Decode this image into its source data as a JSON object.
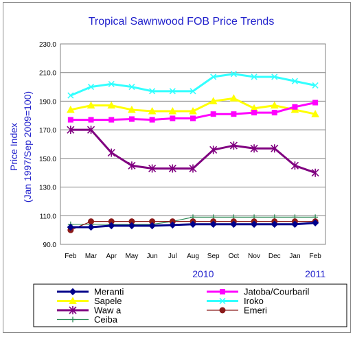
{
  "chart_data": {
    "type": "line",
    "title": "Tropical Sawnwood FOB Price Trends",
    "xlabel": "",
    "ylabel": "Price Index\n(Jan 1997/Sep 2009=100)",
    "ylabel_line1": "Price Index",
    "ylabel_line2": "(Jan 1997/Sep 2009=100)",
    "categories": [
      "Feb",
      "Mar",
      "Apr",
      "May",
      "Jun",
      "Jul",
      "Aug",
      "Sep",
      "Oct",
      "Nov",
      "Dec",
      "Jan",
      "Feb"
    ],
    "year_labels": [
      {
        "text": "2010",
        "category_index": 6.5
      },
      {
        "text": "2011",
        "category_index": 12
      }
    ],
    "ylim": [
      90,
      230
    ],
    "yticks": [
      "90.0",
      "110.0",
      "130.0",
      "150.0",
      "170.0",
      "190.0",
      "210.0",
      "230.0"
    ],
    "ytick_values": [
      90,
      110,
      130,
      150,
      170,
      190,
      210,
      230
    ],
    "grid": true,
    "legend_position": "bottom",
    "series": [
      {
        "name": "Meranti",
        "color": "#00008b",
        "marker": "diamond",
        "values": [
          102,
          102,
          103,
          103,
          103,
          103.5,
          104,
          104,
          104,
          104,
          104,
          104,
          105
        ]
      },
      {
        "name": "Jatoba/Courbaril",
        "color": "#ff00ff",
        "marker": "square",
        "values": [
          177,
          177,
          177,
          177.5,
          177,
          178,
          178,
          181,
          181,
          182,
          182,
          186,
          189
        ]
      },
      {
        "name": "Sapele",
        "color": "#ffff00",
        "marker": "triangle",
        "values": [
          184,
          187,
          187,
          184,
          183,
          183,
          183,
          190,
          192,
          185,
          187,
          184,
          181
        ]
      },
      {
        "name": "Iroko",
        "color": "#33ffff",
        "marker": "x",
        "values": [
          194,
          200,
          202,
          200,
          197,
          197,
          197,
          207,
          209,
          207,
          207,
          204,
          201
        ]
      },
      {
        "name": "Waw a",
        "color": "#800080",
        "marker": "star",
        "values": [
          170,
          170,
          154,
          145,
          143,
          143,
          143,
          156,
          159,
          157,
          157,
          145,
          140
        ]
      },
      {
        "name": "Emeri",
        "color": "#8b1a1a",
        "marker": "circle",
        "values": [
          100,
          106,
          106,
          106,
          106,
          106,
          106,
          106,
          106,
          106,
          106,
          106,
          106
        ]
      },
      {
        "name": "Ceiba",
        "color": "#2e8b57",
        "marker": "plus",
        "values": [
          104,
          104,
          104,
          104,
          104,
          106,
          109,
          109,
          109,
          109,
          109,
          109,
          109
        ]
      }
    ]
  }
}
